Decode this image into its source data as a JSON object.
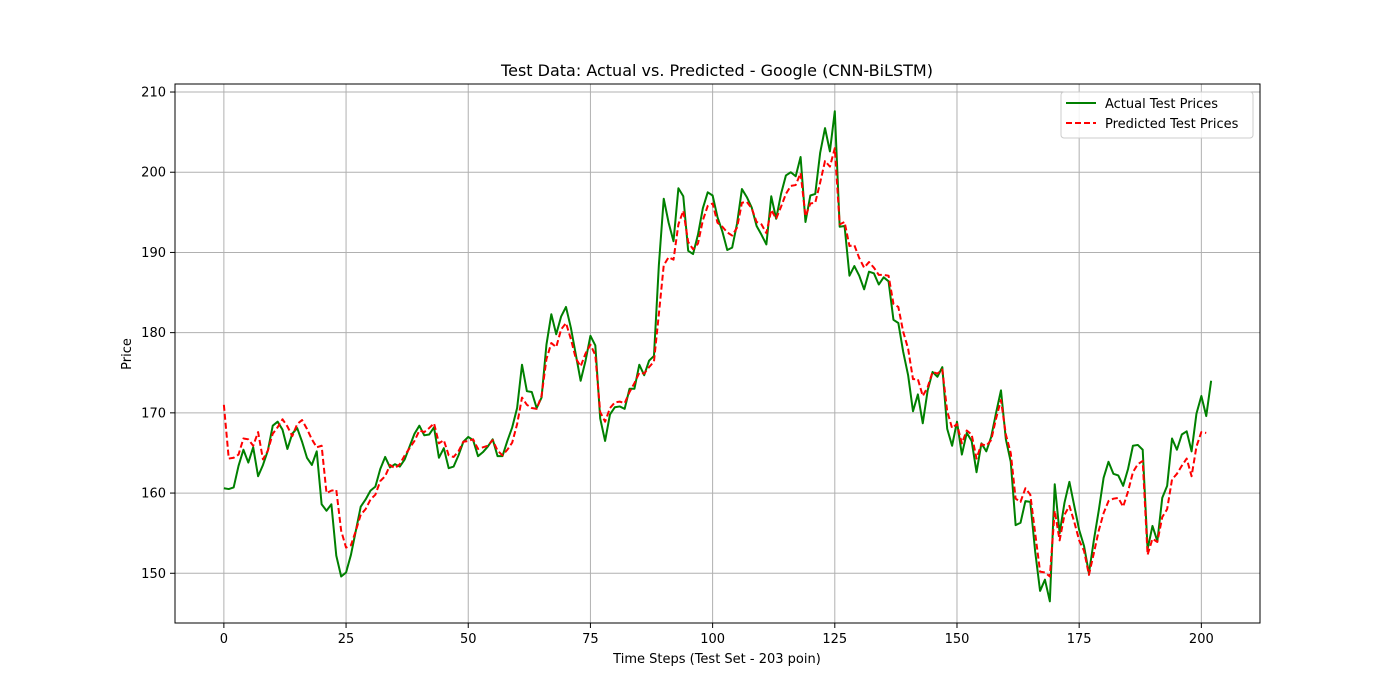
{
  "chart_data": {
    "type": "line",
    "title": "Test Data: Actual vs. Predicted - Google (CNN-BiLSTM)",
    "xlabel": "Time Steps (Test Set - 203 poin)",
    "ylabel": "Price",
    "xlim": [
      -10,
      212
    ],
    "ylim": [
      143.8,
      211
    ],
    "xticks": [
      0,
      25,
      50,
      75,
      100,
      125,
      150,
      175,
      200
    ],
    "yticks": [
      150,
      160,
      170,
      180,
      190,
      200,
      210
    ],
    "grid": true,
    "legend_position": "top-right",
    "series": [
      {
        "name": "Actual Test Prices",
        "color": "#008000",
        "style": "solid",
        "x_start": 0,
        "values": [
          160.6,
          160.5,
          160.7,
          163.4,
          165.4,
          163.8,
          165.7,
          162.1,
          163.5,
          165.3,
          168.4,
          168.9,
          167.9,
          165.5,
          167.4,
          168.1,
          166.4,
          164.4,
          163.5,
          165.2,
          158.6,
          157.8,
          158.6,
          152.2,
          149.6,
          150.1,
          152.3,
          155.3,
          158.3,
          159.2,
          160.3,
          160.8,
          163.0,
          164.5,
          163.2,
          163.6,
          163.3,
          164.2,
          165.8,
          167.4,
          168.4,
          167.2,
          167.3,
          168.2,
          164.4,
          165.6,
          163.1,
          163.3,
          164.7,
          166.4,
          167.0,
          166.6,
          164.6,
          165.1,
          165.8,
          166.7,
          164.6,
          164.6,
          166.5,
          168.2,
          170.6,
          176.0,
          172.7,
          172.6,
          170.6,
          171.9,
          178.5,
          182.3,
          179.8,
          182.0,
          183.2,
          180.6,
          177.3,
          174.0,
          176.5,
          179.6,
          178.4,
          169.3,
          166.5,
          169.8,
          170.7,
          170.8,
          170.5,
          173.0,
          173.0,
          176.0,
          174.7,
          176.5,
          177.1,
          188.4,
          196.7,
          193.7,
          191.4,
          198.0,
          197.0,
          190.2,
          189.8,
          192.2,
          195.5,
          197.5,
          197.1,
          194.4,
          192.6,
          190.3,
          190.6,
          193.6,
          197.9,
          196.9,
          195.6,
          193.3,
          192.2,
          191.0,
          197.0,
          194.2,
          197.3,
          199.6,
          200.0,
          199.5,
          201.9,
          193.8,
          197.1,
          197.3,
          202.4,
          205.5,
          202.6,
          207.6,
          193.2,
          193.3,
          187.1,
          188.3,
          187.1,
          185.4,
          187.6,
          187.4,
          186.0,
          186.9,
          186.4,
          181.6,
          181.2,
          177.6,
          174.7,
          170.2,
          172.3,
          168.7,
          172.8,
          175.1,
          174.5,
          175.7,
          168.0,
          165.9,
          168.9,
          164.8,
          167.5,
          166.5,
          162.6,
          166.2,
          165.2,
          167.0,
          170.0,
          172.8,
          166.7,
          163.9,
          156.0,
          156.3,
          159.0,
          158.9,
          152.7,
          147.8,
          149.2,
          146.5,
          161.1,
          155.0,
          158.8,
          161.4,
          158.4,
          155.4,
          153.4,
          150.0,
          154.1,
          157.8,
          161.9,
          163.9,
          162.4,
          162.2,
          160.9,
          163.0,
          165.9,
          166.0,
          165.4,
          153.0,
          155.9,
          154.0,
          159.4,
          160.9,
          166.8,
          165.4,
          167.3,
          167.7,
          165.2,
          169.9,
          172.1,
          169.6,
          174.0
        ]
      },
      {
        "name": "Predicted Test Prices",
        "color": "#ff0000",
        "style": "dashed",
        "x_start": 0,
        "values": [
          171.0,
          164.3,
          164.4,
          164.8,
          166.8,
          166.7,
          165.9,
          167.6,
          164.2,
          165.3,
          167.4,
          168.2,
          169.2,
          168.3,
          167.1,
          168.6,
          169.1,
          168.0,
          166.7,
          165.7,
          165.9,
          160.0,
          160.3,
          160.4,
          155.3,
          153.2,
          153.5,
          155.3,
          157.3,
          158.0,
          159.2,
          159.8,
          161.5,
          162.1,
          163.5,
          163.1,
          163.6,
          164.7,
          165.6,
          166.5,
          167.8,
          167.6,
          168.1,
          168.7,
          166.2,
          166.6,
          164.7,
          164.5,
          165.2,
          166.4,
          166.5,
          166.7,
          165.5,
          165.7,
          165.9,
          166.6,
          165.3,
          164.7,
          165.4,
          166.3,
          168.6,
          171.9,
          171.0,
          170.6,
          170.5,
          172.1,
          176.7,
          178.7,
          178.2,
          180.4,
          181.2,
          179.2,
          176.8,
          175.8,
          177.4,
          178.5,
          177.2,
          170.1,
          168.9,
          170.6,
          171.3,
          171.4,
          171.2,
          172.6,
          173.7,
          175.0,
          174.9,
          175.7,
          176.4,
          182.3,
          188.4,
          189.4,
          189.1,
          193.5,
          195.2,
          191.3,
          190.4,
          191.1,
          194.0,
          195.8,
          196.1,
          193.7,
          193.2,
          192.5,
          192.1,
          193.1,
          196.2,
          196.3,
          195.5,
          193.8,
          193.5,
          192.4,
          195.3,
          194.2,
          195.7,
          197.3,
          198.3,
          198.4,
          199.9,
          194.5,
          196.1,
          196.2,
          198.7,
          201.4,
          200.7,
          203.0,
          193.5,
          193.8,
          190.8,
          190.9,
          189.3,
          188.1,
          188.8,
          188.1,
          187.2,
          187.2,
          187.1,
          183.6,
          183.2,
          180.1,
          178.0,
          174.2,
          174.2,
          172.1,
          173.2,
          175.1,
          174.9,
          175.4,
          170.2,
          168.1,
          168.6,
          166.2,
          167.8,
          167.3,
          164.3,
          166.1,
          165.9,
          166.6,
          169.3,
          171.6,
          167.3,
          165.0,
          159.3,
          158.9,
          160.6,
          159.8,
          155.0,
          150.2,
          150.1,
          149.6,
          157.8,
          154.1,
          157.3,
          158.4,
          156.4,
          154.1,
          152.8,
          149.8,
          152.5,
          155.3,
          157.5,
          159.0,
          159.3,
          159.4,
          158.3,
          160.2,
          162.6,
          163.6,
          164.0,
          152.3,
          154.3,
          153.9,
          157.0,
          158.0,
          161.7,
          162.4,
          163.4,
          164.3,
          162.1,
          165.8,
          167.6,
          167.5
        ]
      }
    ]
  }
}
